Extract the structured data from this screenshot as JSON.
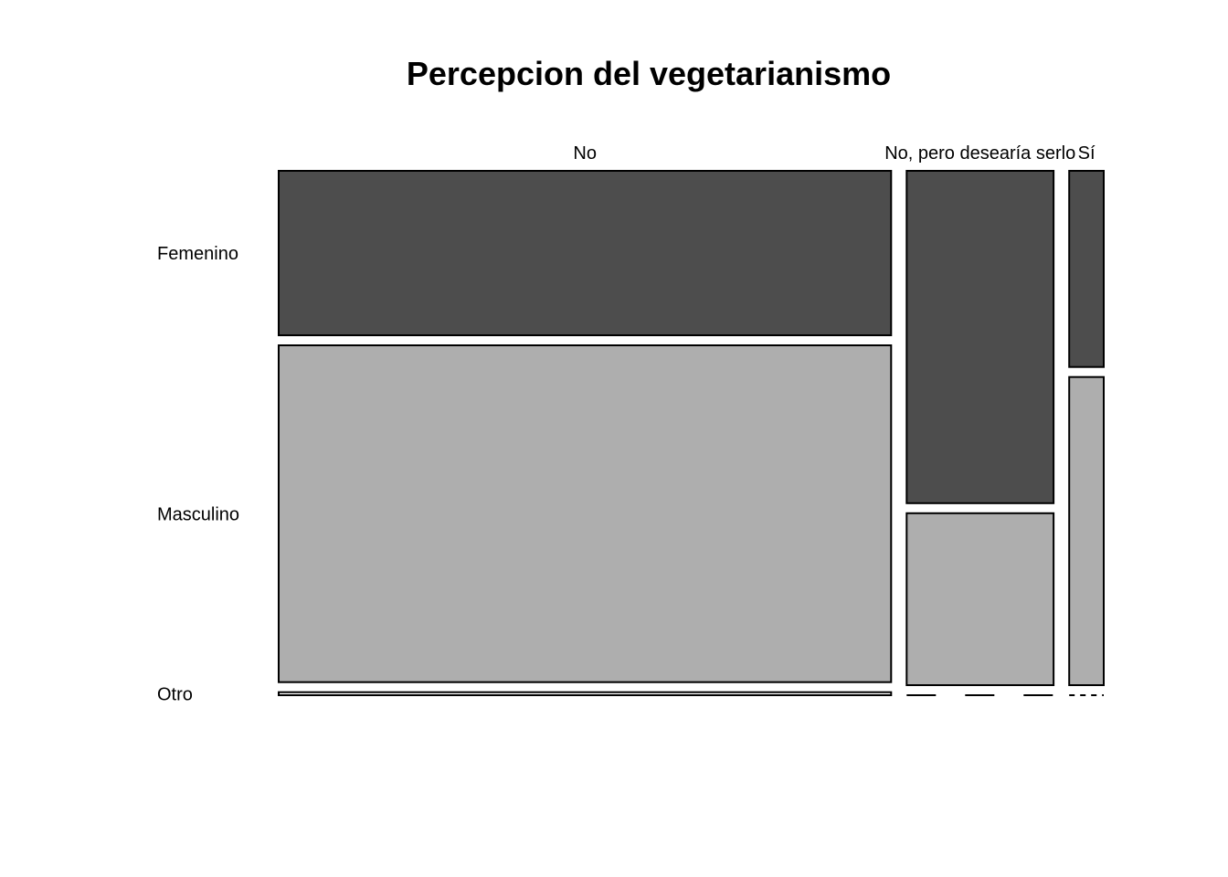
{
  "chart_data": {
    "type": "mosaic",
    "title": "Percepcion del vegetarianismo",
    "x_categories": [
      "No",
      "No, pero desearía serlo",
      "Sí"
    ],
    "y_categories": [
      "Femenino",
      "Masculino",
      "Otro"
    ],
    "column_proportions": [
      0.7456,
      0.1789,
      0.0421
    ],
    "cell_proportions": [
      [
        0.328,
        0.672,
        0.006
      ],
      [
        0.659,
        0.341,
        0.0
      ],
      [
        0.389,
        0.611,
        0.0
      ]
    ],
    "colors": {
      "Femenino": "#4d4d4d",
      "Masculino": "#aeaeae",
      "Otro": "#ffffff"
    }
  }
}
